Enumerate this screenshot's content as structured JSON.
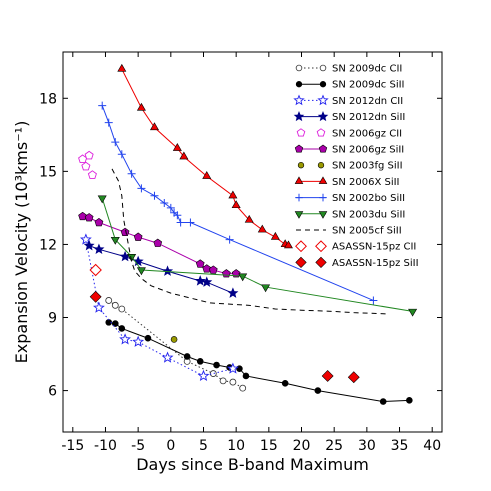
{
  "chart_data": {
    "type": "scatter",
    "xlabel": "Days since B-band Maximum",
    "ylabel": "Expansion Velocity (10³kms⁻¹)",
    "xlim": [
      -16.5,
      41.5
    ],
    "ylim": [
      4.3,
      19.9
    ],
    "xticks": [
      -15,
      -10,
      -5,
      0,
      5,
      10,
      15,
      20,
      25,
      30,
      35,
      40
    ],
    "xtick_labels": [
      "-15",
      "-10",
      "-5",
      "0",
      "5",
      "10",
      "15",
      "20",
      "25",
      "30",
      "35",
      "40"
    ],
    "yticks": [
      6,
      9,
      12,
      15,
      18
    ],
    "ytick_labels": [
      "6",
      "9",
      "12",
      "15",
      "18"
    ],
    "legend_position": "top-right",
    "series": [
      {
        "name": "SN 2009dc CII",
        "color": "#333333",
        "marker": "circle-open",
        "line": "dotted",
        "x": [
          -9.5,
          -8.5,
          -7.5,
          2.5,
          6.5,
          8.0,
          9.5,
          11.0
        ],
        "y": [
          9.7,
          9.5,
          9.35,
          7.2,
          6.7,
          6.4,
          6.35,
          6.1
        ]
      },
      {
        "name": "SN 2009dc SiII",
        "color": "#000000",
        "marker": "circle",
        "line": "solid",
        "x": [
          -9.5,
          -8.5,
          -7.5,
          -3.5,
          2.5,
          4.5,
          7.0,
          9.0,
          10.5,
          11.5,
          17.5,
          22.5,
          32.5,
          36.5
        ],
        "y": [
          8.8,
          8.75,
          8.55,
          8.15,
          7.4,
          7.2,
          7.05,
          6.95,
          6.9,
          6.6,
          6.3,
          6.0,
          5.55,
          5.6
        ]
      },
      {
        "name": "SN 2012dn CII",
        "color": "#2222ee",
        "marker": "star-open",
        "line": "dotted",
        "x": [
          -13.0,
          -11.0,
          -7.0,
          -5.0,
          -0.5,
          5.0,
          9.5
        ],
        "y": [
          12.2,
          9.4,
          8.1,
          8.0,
          7.35,
          6.6,
          6.9
        ]
      },
      {
        "name": "SN 2012dn SiII",
        "color": "#000088",
        "marker": "star",
        "line": "solid",
        "x": [
          -12.5,
          -11.0,
          -7.0,
          -5.0,
          -0.5,
          4.5,
          5.5,
          9.5
        ],
        "y": [
          11.95,
          11.8,
          11.5,
          11.3,
          10.9,
          10.5,
          10.45,
          10.0
        ]
      },
      {
        "name": "SN 2006gz CII",
        "color": "#dd22dd",
        "marker": "pentagon-open",
        "line": "none",
        "x": [
          -13.5,
          -13.0,
          -12.5,
          -12.0
        ],
        "y": [
          15.5,
          15.2,
          15.65,
          14.85
        ]
      },
      {
        "name": "SN 2006gz SiII",
        "color": "#aa00aa",
        "marker": "pentagon",
        "line": "solid",
        "x": [
          -13.5,
          -12.5,
          -11.0,
          -7.0,
          -5.0,
          -2.0,
          4.5,
          5.5,
          6.5,
          8.5,
          10.0
        ],
        "y": [
          13.15,
          13.1,
          12.9,
          12.5,
          12.3,
          12.05,
          11.2,
          11.0,
          10.95,
          10.8,
          10.8
        ]
      },
      {
        "name": "SN 2003fg SiII",
        "color": "#999900",
        "marker": "circle",
        "line": "none",
        "x": [
          0.5
        ],
        "y": [
          8.1
        ]
      },
      {
        "name": "SN 2006X SiII",
        "color": "#ee0000",
        "marker": "triangle",
        "line": "solid",
        "x": [
          -7.5,
          -4.5,
          -2.5,
          1.0,
          2.0,
          5.5,
          9.5,
          10.0,
          12.0,
          14.0,
          16.0,
          17.5,
          18.0
        ],
        "y": [
          19.2,
          17.6,
          16.8,
          15.95,
          15.6,
          14.8,
          14.0,
          13.6,
          13.0,
          12.6,
          12.3,
          12.0,
          11.95
        ]
      },
      {
        "name": "SN 2002bo SiII",
        "color": "#2244ee",
        "marker": "plus",
        "line": "solid",
        "x": [
          -10.5,
          -9.5,
          -8.5,
          -7.5,
          -6.0,
          -4.5,
          -2.5,
          -1.0,
          0.0,
          0.5,
          1.0,
          1.5,
          3.0,
          9.0,
          31.0
        ],
        "y": [
          17.7,
          17.0,
          16.2,
          15.7,
          14.9,
          14.3,
          14.0,
          13.7,
          13.5,
          13.3,
          13.2,
          12.9,
          12.9,
          12.2,
          9.7
        ]
      },
      {
        "name": "SN 2003du SiII",
        "color": "#228822",
        "marker": "triangle-down",
        "line": "solid",
        "x": [
          -10.5,
          -8.5,
          -6.0,
          -4.5,
          11.0,
          14.5,
          37.0
        ],
        "y": [
          13.9,
          12.2,
          11.5,
          10.95,
          10.7,
          10.25,
          9.25
        ]
      },
      {
        "name": "SN 2005cf SiII",
        "color": "#000000",
        "marker": "none",
        "line": "dashed",
        "x": [
          -9.0,
          -8.0,
          -7.5,
          -7.2,
          -6.5,
          -6.0,
          -5.5,
          -4.5,
          -3.0,
          0.0,
          3.0,
          6.0,
          9.0,
          12.0,
          16.0,
          20.0,
          25.0,
          28.0,
          33.0
        ],
        "y": [
          15.1,
          14.6,
          14.0,
          13.0,
          12.0,
          11.3,
          10.9,
          10.6,
          10.3,
          10.0,
          9.8,
          9.6,
          9.55,
          9.5,
          9.35,
          9.3,
          9.25,
          9.2,
          9.15
        ]
      },
      {
        "name": "ASASSN-15pz CII",
        "color": "#ee0000",
        "marker": "diamond-open",
        "line": "none",
        "x": [
          -11.5
        ],
        "y": [
          10.95
        ]
      },
      {
        "name": "ASASSN-15pz SiII",
        "color": "#ee0000",
        "marker": "diamond",
        "line": "none",
        "x": [
          -11.5,
          24.0,
          28.0
        ],
        "y": [
          9.85,
          6.6,
          6.55
        ]
      }
    ]
  }
}
